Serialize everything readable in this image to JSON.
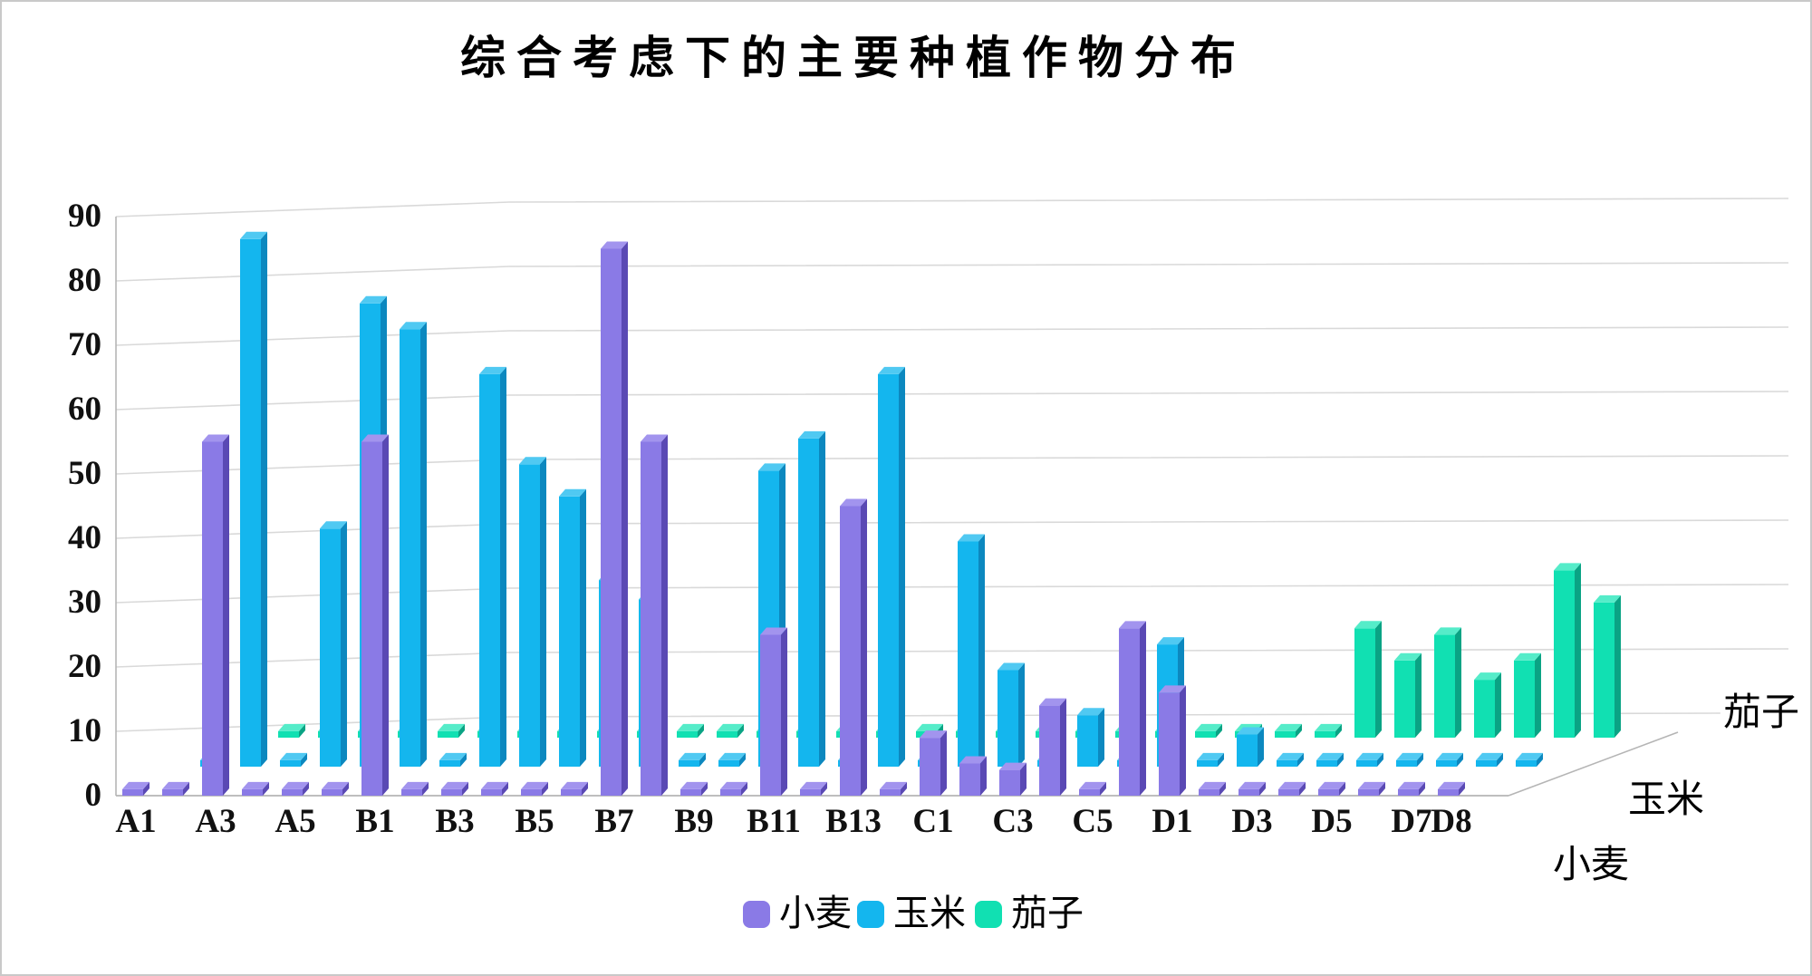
{
  "title": "综合考虑下的主要种植作物分布",
  "chart_data": {
    "type": "bar",
    "projection": "3d-perspective",
    "categories": [
      "A1",
      "A2",
      "A3",
      "A4",
      "A5",
      "A6",
      "B1",
      "B2",
      "B3",
      "B4",
      "B5",
      "B6",
      "B7",
      "B8",
      "B9",
      "B10",
      "B11",
      "B12",
      "B13",
      "B14",
      "C1",
      "C2",
      "C3",
      "C4",
      "C5",
      "C6",
      "D1",
      "D2",
      "D3",
      "D4",
      "D5",
      "D6",
      "D7",
      "D8"
    ],
    "x_tick_labels_shown": [
      "A1",
      "A3",
      "A5",
      "B1",
      "B3",
      "B5",
      "B7",
      "B9",
      "B11",
      "B13",
      "C1",
      "C3",
      "C5",
      "D1",
      "D3",
      "D5",
      "D7",
      "D8"
    ],
    "series": [
      {
        "name": "小麦",
        "color": "#8a7ae6",
        "color_dark": "#5a49b4",
        "color_light": "#a294ee",
        "values": [
          1,
          1,
          55,
          1,
          1,
          1,
          55,
          1,
          1,
          1,
          1,
          1,
          85,
          55,
          1,
          1,
          25,
          1,
          45,
          1,
          9,
          5,
          4,
          14,
          1,
          26,
          16,
          1,
          1,
          1,
          1,
          1,
          1,
          1
        ]
      },
      {
        "name": "玉米",
        "color": "#14b6ee",
        "color_dark": "#0c88bf",
        "color_light": "#50c9f2",
        "values": [
          1,
          82,
          1,
          37,
          72,
          68,
          1,
          61,
          47,
          42,
          29,
          26,
          1,
          1,
          46,
          51,
          1,
          61,
          1,
          35,
          15,
          1,
          8,
          1,
          19,
          1,
          5,
          1,
          1,
          1,
          1,
          1,
          1,
          1
        ]
      },
      {
        "name": "茄子",
        "color": "#11e0b2",
        "color_dark": "#0aa384",
        "color_light": "#55ecc9",
        "values": [
          1,
          1,
          1,
          1,
          1,
          1,
          1,
          1,
          1,
          1,
          1,
          1,
          1,
          1,
          1,
          1,
          1,
          1,
          1,
          1,
          1,
          1,
          1,
          1,
          1,
          1,
          1,
          17,
          12,
          16,
          9,
          12,
          26,
          21
        ]
      }
    ],
    "ylabel": "",
    "xlabel": "",
    "ylim": [
      0,
      90
    ],
    "ytick_step": 10,
    "grid": true,
    "legend_position": "bottom",
    "depth_axis_labels": [
      "小麦",
      "玉米",
      "茄子"
    ]
  },
  "colors": {
    "background": "#ffffff",
    "gridline": "#d9d9d9",
    "axis_line": "#b5b5b5",
    "text": "#000000"
  }
}
